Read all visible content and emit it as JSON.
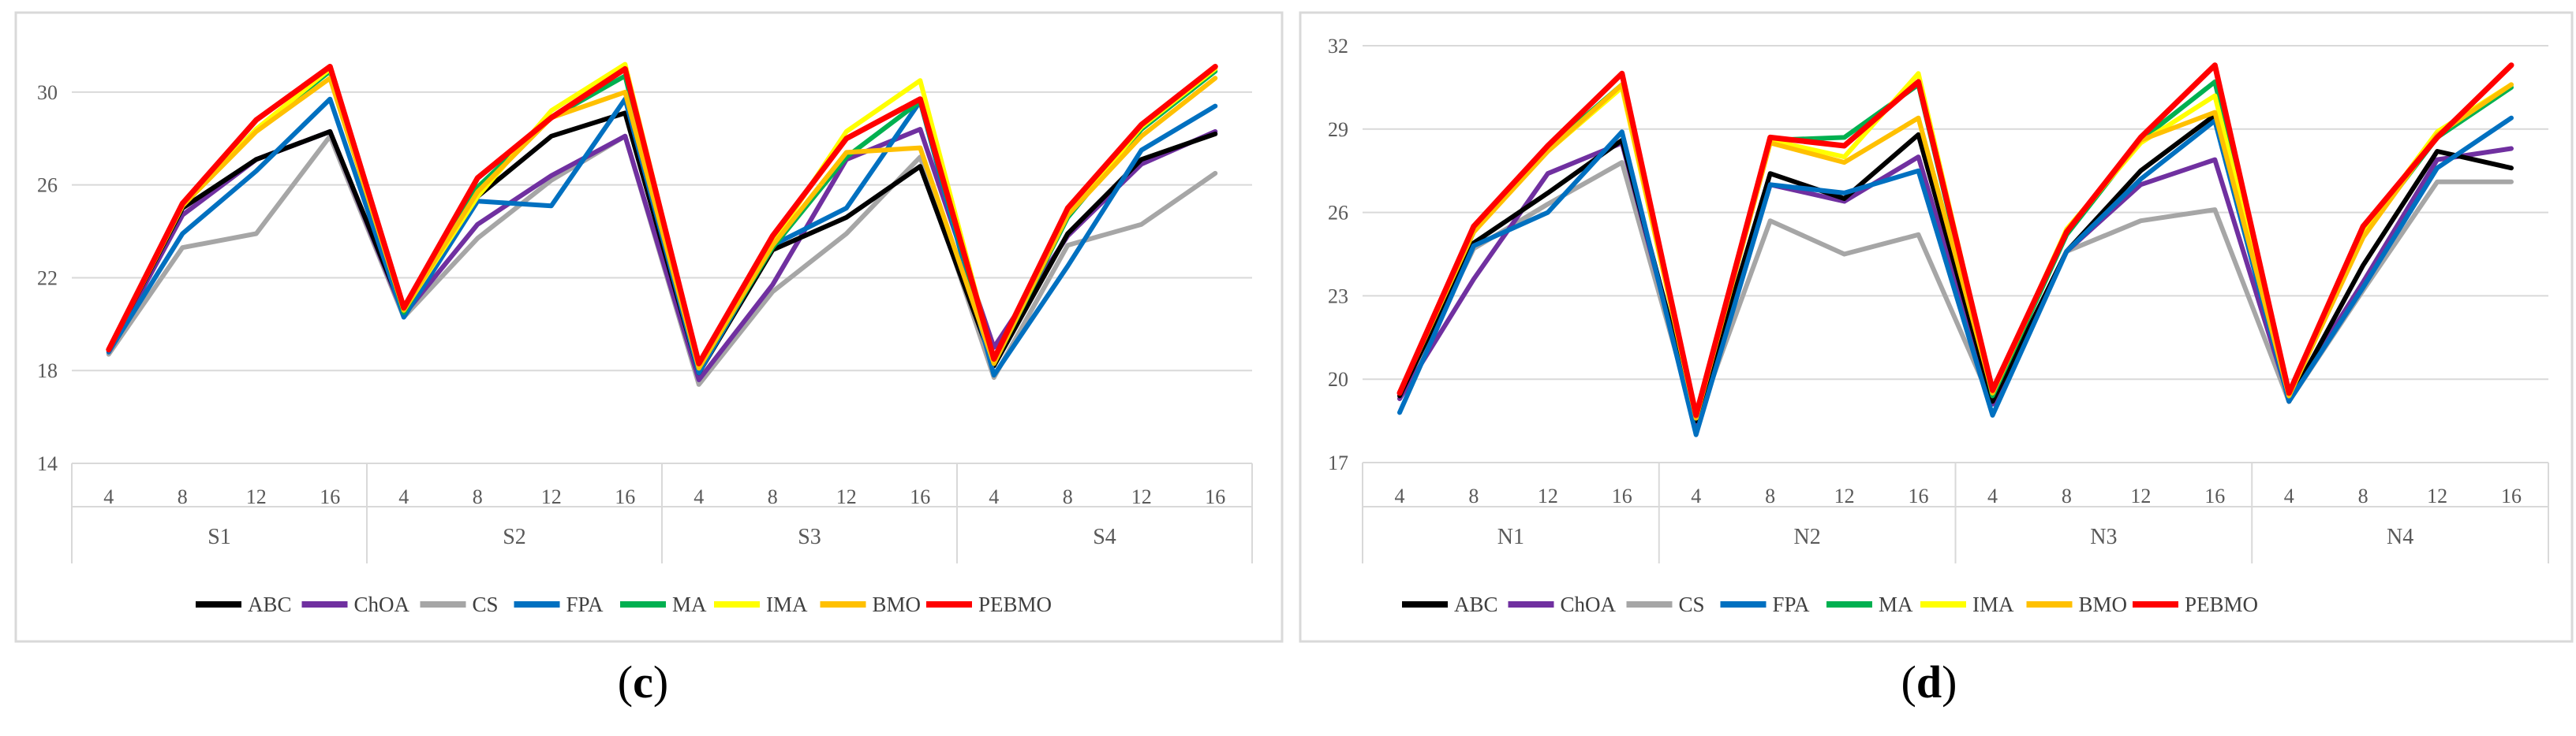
{
  "colors": {
    "ABC": "#000000",
    "ChOA": "#7030a0",
    "CS": "#a6a6a6",
    "FPA": "#0070c0",
    "MA": "#00b050",
    "IMA": "#ffff00",
    "BMO": "#ffc000",
    "PEBMO": "#ff0000",
    "frame": "#d9d9d9",
    "grid": "#d9d9d9",
    "tick": "#595959"
  },
  "chart_data": [
    {
      "type": "line",
      "caption_letter": "c",
      "caption_open": "(",
      "caption_close": ")",
      "groups": [
        "S1",
        "S2",
        "S3",
        "S4"
      ],
      "categories": [
        "4",
        "8",
        "12",
        "16",
        "4",
        "8",
        "12",
        "16",
        "4",
        "8",
        "12",
        "16",
        "4",
        "8",
        "12",
        "16"
      ],
      "ylim": [
        14,
        32
      ],
      "yticks": [
        "14",
        "18",
        "22",
        "26",
        "30"
      ],
      "ytick_values": [
        14,
        18,
        22,
        26,
        30
      ],
      "series": [
        {
          "name": "CS",
          "values": [
            18.7,
            23.3,
            23.9,
            28.1,
            20.3,
            23.7,
            26.2,
            28.1,
            17.4,
            21.4,
            23.9,
            27.2,
            17.7,
            23.4,
            24.3,
            26.5
          ]
        },
        {
          "name": "ChOA",
          "values": [
            18.8,
            24.7,
            27.1,
            28.3,
            20.4,
            24.3,
            26.4,
            28.1,
            17.6,
            21.7,
            27.1,
            28.4,
            19.0,
            23.8,
            26.9,
            28.3
          ]
        },
        {
          "name": "ABC",
          "values": [
            18.9,
            25.0,
            27.1,
            28.3,
            20.5,
            25.5,
            28.1,
            29.1,
            17.9,
            23.2,
            24.6,
            26.8,
            18.2,
            23.9,
            27.1,
            28.2
          ]
        },
        {
          "name": "FPA",
          "values": [
            18.8,
            23.9,
            26.6,
            29.7,
            20.3,
            25.3,
            25.1,
            29.7,
            17.9,
            23.4,
            25.0,
            29.6,
            17.8,
            22.5,
            27.5,
            29.4
          ]
        },
        {
          "name": "MA",
          "values": [
            18.9,
            25.1,
            28.4,
            30.9,
            20.5,
            25.9,
            28.9,
            30.7,
            18.1,
            23.3,
            27.2,
            29.6,
            18.3,
            24.6,
            28.4,
            30.9
          ]
        },
        {
          "name": "IMA",
          "values": [
            18.9,
            25.1,
            28.4,
            31.0,
            20.6,
            25.5,
            29.2,
            31.2,
            18.2,
            23.5,
            28.3,
            30.5,
            18.4,
            24.7,
            28.5,
            31.0
          ]
        },
        {
          "name": "BMO",
          "values": [
            18.9,
            25.1,
            28.3,
            30.6,
            20.6,
            25.7,
            28.9,
            30.0,
            18.1,
            23.4,
            27.4,
            27.6,
            18.3,
            24.7,
            28.1,
            30.6
          ]
        },
        {
          "name": "PEBMO",
          "values": [
            18.9,
            25.2,
            28.8,
            31.1,
            20.7,
            26.3,
            28.9,
            31.0,
            18.3,
            23.8,
            28.0,
            29.7,
            18.5,
            25.0,
            28.6,
            31.1
          ]
        }
      ]
    },
    {
      "type": "line",
      "caption_letter": "d",
      "caption_open": "(",
      "caption_close": ")",
      "groups": [
        "N1",
        "N2",
        "N3",
        "N4"
      ],
      "categories": [
        "4",
        "8",
        "12",
        "16",
        "4",
        "8",
        "12",
        "16",
        "4",
        "8",
        "12",
        "16",
        "4",
        "8",
        "12",
        "16"
      ],
      "ylim": [
        17,
        32
      ],
      "yticks": [
        "17",
        "20",
        "23",
        "26",
        "29",
        "32"
      ],
      "ytick_values": [
        17,
        20,
        23,
        26,
        29,
        32
      ],
      "series": [
        {
          "name": "CS",
          "values": [
            19.3,
            24.7,
            26.3,
            27.8,
            18.4,
            25.7,
            24.5,
            25.2,
            19.1,
            24.6,
            25.7,
            26.1,
            19.2,
            23.2,
            27.1,
            27.1
          ]
        },
        {
          "name": "ChOA",
          "values": [
            19.3,
            23.6,
            27.4,
            28.5,
            18.4,
            27.0,
            26.4,
            28.0,
            19.1,
            24.6,
            27.0,
            27.9,
            19.3,
            23.5,
            27.9,
            28.3
          ]
        },
        {
          "name": "ABC",
          "values": [
            19.4,
            24.9,
            26.7,
            28.6,
            18.5,
            27.4,
            26.5,
            28.8,
            19.2,
            24.6,
            27.5,
            29.5,
            19.2,
            24.1,
            28.2,
            27.6
          ]
        },
        {
          "name": "FPA",
          "values": [
            18.8,
            24.8,
            26.0,
            28.9,
            18.0,
            27.0,
            26.7,
            27.5,
            18.7,
            24.6,
            27.2,
            29.3,
            19.2,
            23.3,
            27.6,
            29.4
          ]
        },
        {
          "name": "MA",
          "values": [
            19.5,
            25.3,
            28.3,
            30.6,
            18.6,
            28.6,
            28.7,
            30.6,
            19.4,
            25.2,
            28.6,
            30.7,
            19.4,
            25.2,
            28.7,
            30.5
          ]
        },
        {
          "name": "IMA",
          "values": [
            19.5,
            25.4,
            28.2,
            30.5,
            18.6,
            28.6,
            28.0,
            31.0,
            19.5,
            25.4,
            28.5,
            30.2,
            19.4,
            25.3,
            28.9,
            30.6
          ]
        },
        {
          "name": "BMO",
          "values": [
            19.5,
            25.3,
            28.2,
            30.6,
            18.6,
            28.5,
            27.8,
            29.4,
            19.5,
            25.3,
            28.6,
            29.6,
            19.4,
            25.1,
            28.8,
            30.6
          ]
        },
        {
          "name": "PEBMO",
          "values": [
            19.5,
            25.5,
            28.4,
            31.0,
            18.7,
            28.7,
            28.4,
            30.7,
            19.6,
            25.3,
            28.7,
            31.3,
            19.5,
            25.5,
            28.7,
            31.3
          ]
        }
      ]
    }
  ],
  "legend_order": [
    "ABC",
    "ChOA",
    "CS",
    "FPA",
    "MA",
    "IMA",
    "BMO",
    "PEBMO"
  ]
}
